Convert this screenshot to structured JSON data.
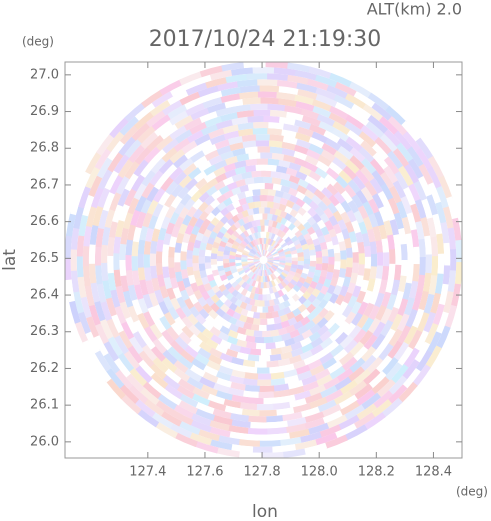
{
  "chart_data": {
    "type": "radar-ppi",
    "title": "2017/10/24 21:19:30",
    "subtitle": "ALT(km) 2.0",
    "x_label": "lon",
    "y_label": "lat",
    "x_unit": "(deg)",
    "y_unit": "(deg)",
    "xlim": [
      127.11,
      128.5
    ],
    "ylim": [
      25.956,
      27.035
    ],
    "xticks": [
      127.4,
      127.6,
      127.8,
      {
        "value": 128.0,
        "label": "128.0"
      },
      128.2,
      128.4
    ],
    "yticks": [
      {
        "value": 26.0,
        "label": "26.0"
      },
      26.1,
      26.2,
      26.3,
      26.4,
      26.5,
      26.6,
      26.7,
      26.8,
      26.9,
      {
        "value": 27.0,
        "label": "27.0"
      }
    ]
  }
}
